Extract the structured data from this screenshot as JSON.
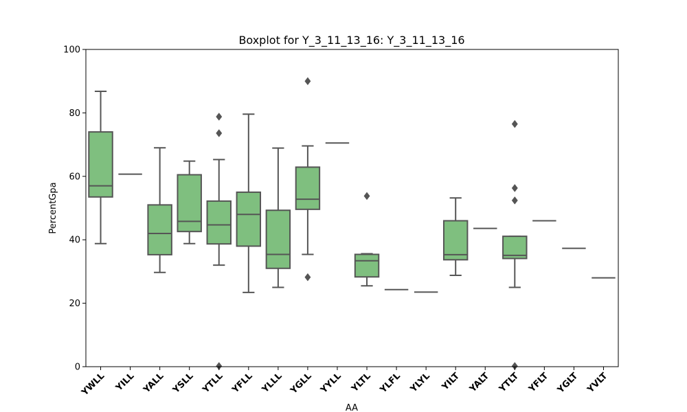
{
  "chart_data": {
    "type": "boxplot",
    "title": "Boxplot for Y_3_11_13_16: Y_3_11_13_16",
    "xlabel": "AA",
    "ylabel": "PercentGpa",
    "ylim": [
      0,
      100
    ],
    "yticks": [
      0,
      20,
      40,
      60,
      80,
      100
    ],
    "grid": false,
    "colors": {
      "box_fill": "#7fbf7f",
      "line": "#555555",
      "outlier": "#555555"
    },
    "categories": [
      "YWLL",
      "YILL",
      "YALL",
      "YSLL",
      "YTLL",
      "YFLL",
      "YLLL",
      "YGLL",
      "YYLL",
      "YLTL",
      "YLFL",
      "YLYL",
      "YILT",
      "YALT",
      "YTLT",
      "YFLT",
      "YGLT",
      "YVLT"
    ],
    "boxes": [
      {
        "category": "YWLL",
        "whislo": 38.8,
        "q1": 53.5,
        "med": 57.0,
        "q3": 74.0,
        "whishi": 86.8,
        "fliers": []
      },
      {
        "category": "YILL",
        "whislo": 60.7,
        "q1": 60.7,
        "med": 60.7,
        "q3": 60.7,
        "whishi": 60.7,
        "fliers": []
      },
      {
        "category": "YALL",
        "whislo": 29.7,
        "q1": 35.3,
        "med": 42.0,
        "q3": 51.0,
        "whishi": 69.0,
        "fliers": []
      },
      {
        "category": "YSLL",
        "whislo": 38.8,
        "q1": 42.6,
        "med": 45.8,
        "q3": 60.5,
        "whishi": 64.8,
        "fliers": []
      },
      {
        "category": "YTLL",
        "whislo": 32.0,
        "q1": 38.7,
        "med": 44.7,
        "q3": 52.2,
        "whishi": 65.3,
        "fliers": [
          78.8,
          73.6,
          0.2
        ]
      },
      {
        "category": "YFLL",
        "whislo": 23.4,
        "q1": 38.0,
        "med": 48.0,
        "q3": 55.0,
        "whishi": 79.6,
        "fliers": []
      },
      {
        "category": "YLLL",
        "whislo": 25.0,
        "q1": 31.0,
        "med": 35.4,
        "q3": 49.3,
        "whishi": 68.9,
        "fliers": []
      },
      {
        "category": "YGLL",
        "whislo": 35.4,
        "q1": 49.6,
        "med": 52.8,
        "q3": 62.9,
        "whishi": 69.6,
        "fliers": [
          90.0,
          28.2
        ]
      },
      {
        "category": "YYLL",
        "whislo": 70.5,
        "q1": 70.5,
        "med": 70.5,
        "q3": 70.5,
        "whishi": 70.5,
        "fliers": []
      },
      {
        "category": "YLTL",
        "whislo": 25.5,
        "q1": 28.3,
        "med": 33.4,
        "q3": 35.4,
        "whishi": 35.6,
        "fliers": [
          53.8
        ]
      },
      {
        "category": "YLFL",
        "whislo": 24.3,
        "q1": 24.3,
        "med": 24.3,
        "q3": 24.3,
        "whishi": 24.3,
        "fliers": []
      },
      {
        "category": "YLYL",
        "whislo": 23.5,
        "q1": 23.5,
        "med": 23.5,
        "q3": 23.5,
        "whishi": 23.5,
        "fliers": []
      },
      {
        "category": "YILT",
        "whislo": 28.8,
        "q1": 33.7,
        "med": 35.3,
        "q3": 46.0,
        "whishi": 53.2,
        "fliers": []
      },
      {
        "category": "YALT",
        "whislo": 43.6,
        "q1": 43.6,
        "med": 43.6,
        "q3": 43.6,
        "whishi": 43.6,
        "fliers": []
      },
      {
        "category": "YTLT",
        "whislo": 25.0,
        "q1": 34.1,
        "med": 35.1,
        "q3": 41.1,
        "whishi": 41.1,
        "fliers": [
          76.5,
          56.3,
          52.4,
          0.2
        ]
      },
      {
        "category": "YFLT",
        "whislo": 46.0,
        "q1": 46.0,
        "med": 46.0,
        "q3": 46.0,
        "whishi": 46.0,
        "fliers": []
      },
      {
        "category": "YGLT",
        "whislo": 37.3,
        "q1": 37.3,
        "med": 37.3,
        "q3": 37.3,
        "whishi": 37.3,
        "fliers": []
      },
      {
        "category": "YVLT",
        "whislo": 28.0,
        "q1": 28.0,
        "med": 28.0,
        "q3": 28.0,
        "whishi": 28.0,
        "fliers": []
      }
    ]
  }
}
